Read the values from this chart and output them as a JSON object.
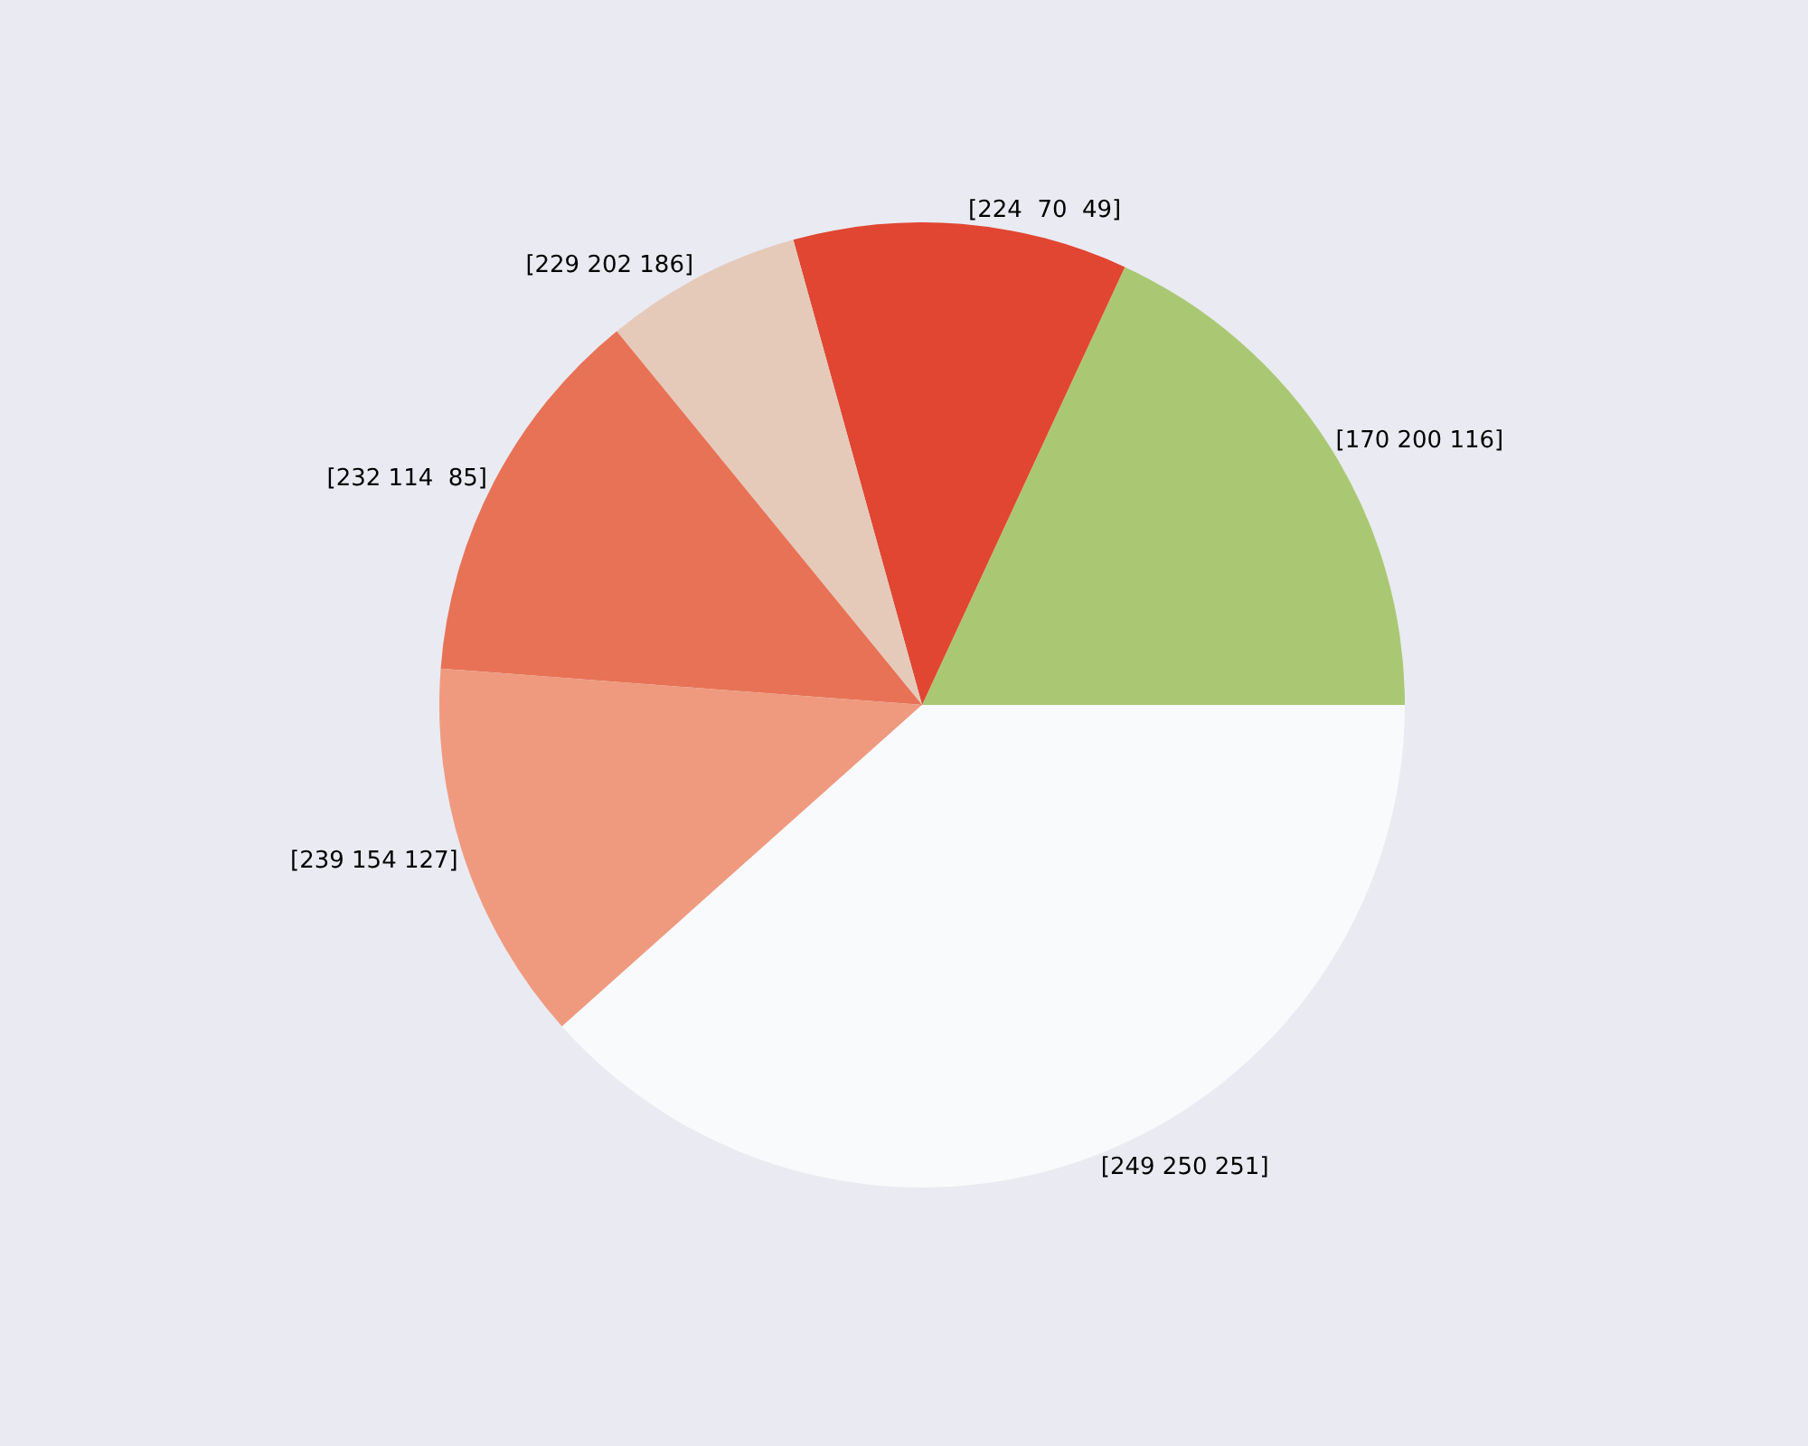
{
  "chart_data": {
    "type": "pie",
    "categories": [
      "[170 200 116]",
      "[224  70  49]",
      "[229 202 186]",
      "[232 114  85]",
      "[239 154 127]",
      "[249 250 251]"
    ],
    "values": [
      18.1,
      11.2,
      6.6,
      12.9,
      12.8,
      38.4
    ],
    "colors": [
      "#aac874",
      "#e04631",
      "#e5caba",
      "#e87255",
      "#ef9a7f",
      "#f9fafb"
    ],
    "legend": false
  }
}
